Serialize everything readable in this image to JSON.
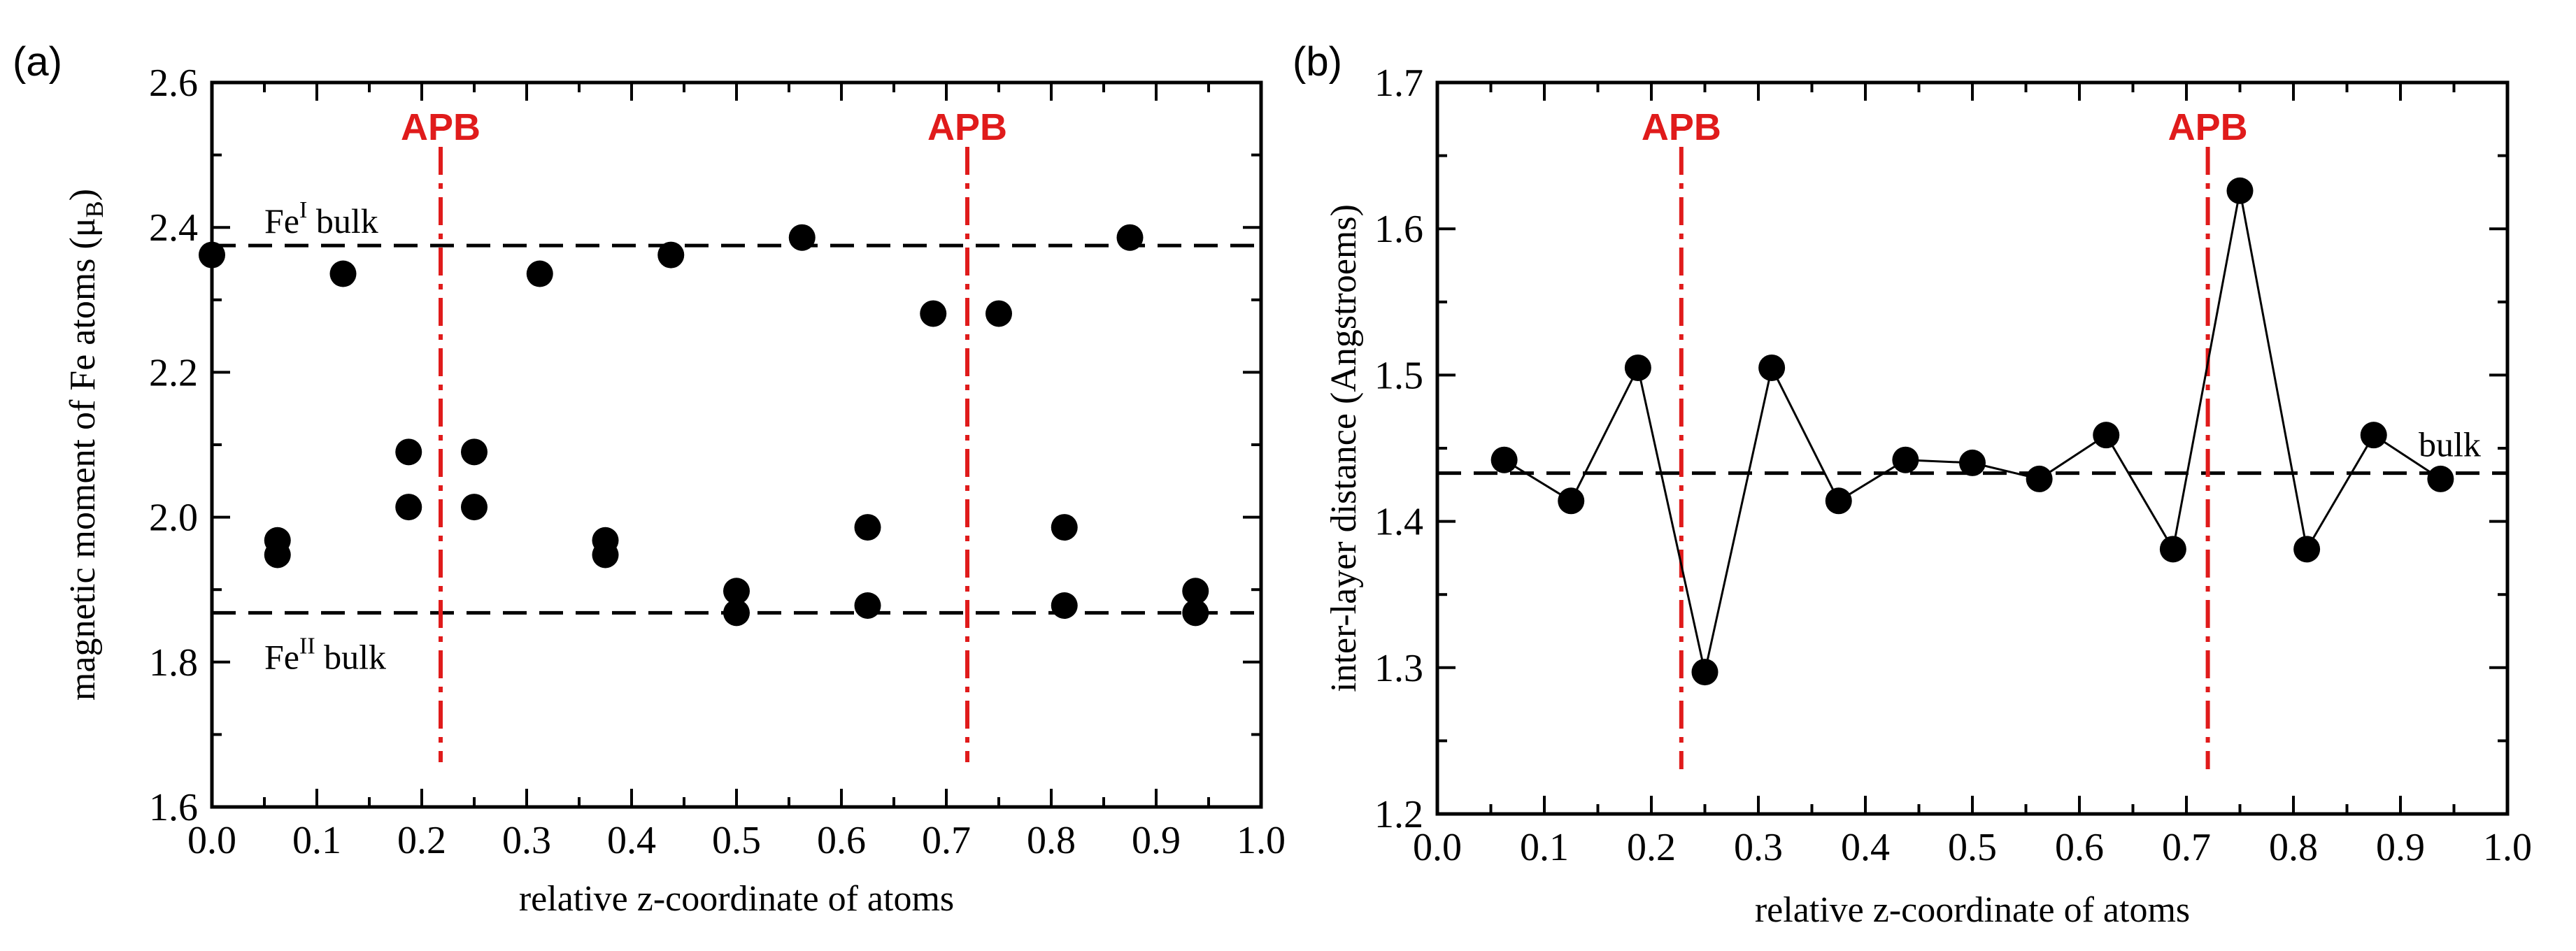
{
  "chart_data": [
    {
      "panel": "(a)",
      "type": "scatter",
      "xlabel": "relative z-coordinate of atoms",
      "ylabel": "magnetic moment of Fe atoms (μ",
      "ylabel_sub": "B",
      "ylabel_end": ")",
      "xlim": [
        0.0,
        1.0
      ],
      "ylim": [
        1.6,
        2.6
      ],
      "xticks": [
        "0.0",
        "0.1",
        "0.2",
        "0.3",
        "0.4",
        "0.5",
        "0.6",
        "0.7",
        "0.8",
        "0.9",
        "1.0"
      ],
      "yticks": [
        "1.6",
        "1.8",
        "2.0",
        "2.2",
        "2.4",
        "2.6"
      ],
      "reference_lines": [
        {
          "label": "Fe",
          "sup": "I",
          "suffix": " bulk",
          "y": 2.375
        },
        {
          "label": "Fe",
          "sup": "II",
          "suffix": " bulk",
          "y": 1.868
        }
      ],
      "apb_lines": [
        {
          "label": "APB",
          "x": 0.218
        },
        {
          "label": "APB",
          "x": 0.72
        }
      ],
      "points": [
        [
          0.0,
          2.362
        ],
        [
          0.0625,
          1.968
        ],
        [
          0.0625,
          1.948
        ],
        [
          0.125,
          2.336
        ],
        [
          0.1875,
          2.09
        ],
        [
          0.1875,
          2.014
        ],
        [
          0.25,
          2.09
        ],
        [
          0.25,
          2.014
        ],
        [
          0.3125,
          2.336
        ],
        [
          0.375,
          1.968
        ],
        [
          0.375,
          1.948
        ],
        [
          0.4375,
          2.362
        ],
        [
          0.5,
          1.898
        ],
        [
          0.5,
          1.868
        ],
        [
          0.5625,
          2.386
        ],
        [
          0.625,
          1.986
        ],
        [
          0.625,
          1.878
        ],
        [
          0.6875,
          2.281
        ],
        [
          0.75,
          2.281
        ],
        [
          0.8125,
          1.986
        ],
        [
          0.8125,
          1.878
        ],
        [
          0.875,
          2.386
        ],
        [
          0.9375,
          1.898
        ],
        [
          0.9375,
          1.868
        ]
      ]
    },
    {
      "panel": "(b)",
      "type": "line",
      "xlabel": "relative z-coordinate of atoms",
      "ylabel": "inter-layer distance (Angstroems)",
      "xlim": [
        0.0,
        1.0
      ],
      "ylim": [
        1.2,
        1.7
      ],
      "xticks": [
        "0.0",
        "0.1",
        "0.2",
        "0.3",
        "0.4",
        "0.5",
        "0.6",
        "0.7",
        "0.8",
        "0.9",
        "1.0"
      ],
      "yticks": [
        "1.2",
        "1.3",
        "1.4",
        "1.5",
        "1.6",
        "1.7"
      ],
      "reference_lines": [
        {
          "label": "bulk",
          "y": 1.433
        }
      ],
      "apb_lines": [
        {
          "label": "APB",
          "x": 0.228
        },
        {
          "label": "APB",
          "x": 0.72
        }
      ],
      "points": [
        [
          0.0625,
          1.442
        ],
        [
          0.125,
          1.414
        ],
        [
          0.1875,
          1.505
        ],
        [
          0.25,
          1.297
        ],
        [
          0.3125,
          1.505
        ],
        [
          0.375,
          1.414
        ],
        [
          0.4375,
          1.442
        ],
        [
          0.5,
          1.44
        ],
        [
          0.5625,
          1.429
        ],
        [
          0.625,
          1.459
        ],
        [
          0.6875,
          1.381
        ],
        [
          0.75,
          1.626
        ],
        [
          0.8125,
          1.381
        ],
        [
          0.875,
          1.459
        ],
        [
          0.9375,
          1.429
        ]
      ]
    }
  ],
  "colors": {
    "apb": "#e01b1b",
    "marker": "#000000"
  }
}
